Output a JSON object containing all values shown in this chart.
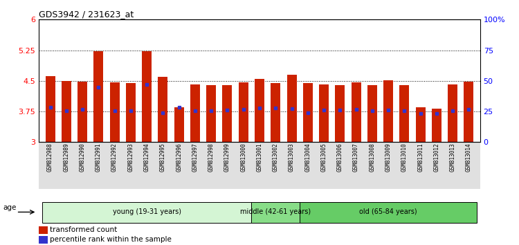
{
  "title": "GDS3942 / 231623_at",
  "samples": [
    "GSM812988",
    "GSM812989",
    "GSM812990",
    "GSM812991",
    "GSM812992",
    "GSM812993",
    "GSM812994",
    "GSM812995",
    "GSM812996",
    "GSM812997",
    "GSM812998",
    "GSM812999",
    "GSM813000",
    "GSM813001",
    "GSM813002",
    "GSM813003",
    "GSM813004",
    "GSM813005",
    "GSM813006",
    "GSM813007",
    "GSM813008",
    "GSM813009",
    "GSM813010",
    "GSM813011",
    "GSM813012",
    "GSM813013",
    "GSM813014"
  ],
  "bar_values": [
    4.62,
    4.5,
    4.48,
    5.22,
    4.46,
    4.45,
    5.22,
    4.6,
    3.85,
    4.42,
    4.4,
    4.4,
    4.47,
    4.55,
    4.44,
    4.65,
    4.44,
    4.42,
    4.4,
    4.46,
    4.4,
    4.52,
    4.4,
    3.85,
    3.82,
    4.42,
    4.48
  ],
  "percentile_values": [
    3.85,
    3.77,
    3.8,
    4.35,
    3.77,
    3.77,
    4.42,
    3.72,
    3.85,
    3.77,
    3.77,
    3.78,
    3.8,
    3.83,
    3.83,
    3.82,
    3.72,
    3.78,
    3.78,
    3.8,
    3.77,
    3.78,
    3.77,
    3.7,
    3.7,
    3.77,
    3.8
  ],
  "ylim": [
    3.0,
    6.0
  ],
  "yticks_left": [
    3.0,
    3.75,
    4.5,
    5.25,
    6.0
  ],
  "ytick_labels_left": [
    "3",
    "3.75",
    "4.5",
    "5.25",
    "6"
  ],
  "yticks_right": [
    0,
    25,
    50,
    75,
    100
  ],
  "ytick_labels_right": [
    "0",
    "25",
    "50",
    "75",
    "100%"
  ],
  "bar_color": "#cc2200",
  "dot_color": "#3333cc",
  "groups": [
    {
      "label": "young (19-31 years)",
      "start": 0,
      "end": 13,
      "color": "#d4f5d4"
    },
    {
      "label": "middle (42-61 years)",
      "start": 13,
      "end": 16,
      "color": "#88dd88"
    },
    {
      "label": "old (65-84 years)",
      "start": 16,
      "end": 27,
      "color": "#66cc66"
    }
  ],
  "age_label": "age",
  "legend_items": [
    {
      "color": "#cc2200",
      "label": "transformed count"
    },
    {
      "color": "#3333cc",
      "label": "percentile rank within the sample"
    }
  ],
  "bar_width": 0.6
}
